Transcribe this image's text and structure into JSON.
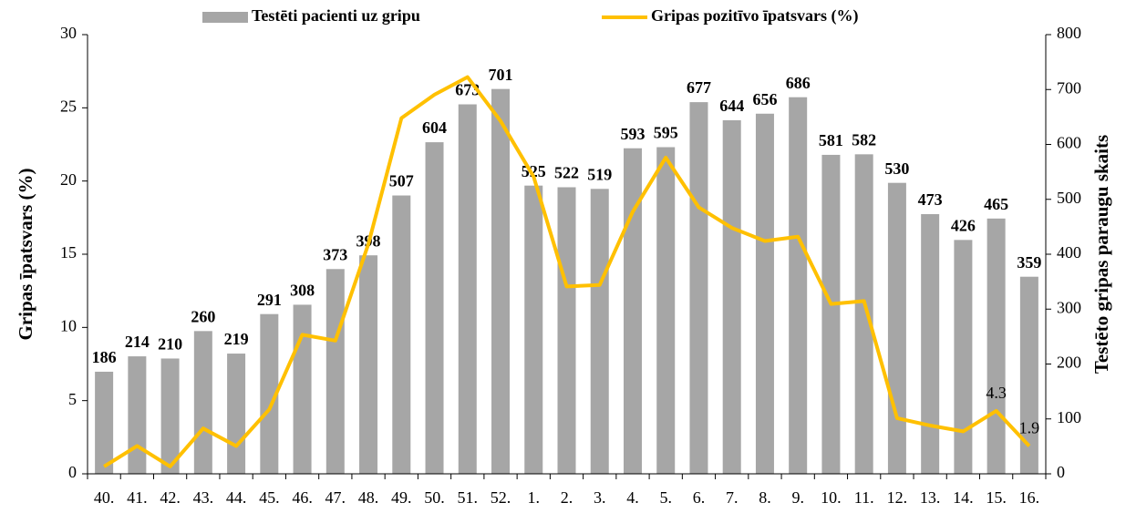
{
  "chart_data": {
    "type": "bar_line",
    "categories": [
      "40.",
      "41.",
      "42.",
      "43.",
      "44.",
      "45.",
      "46.",
      "47.",
      "48.",
      "49.",
      "50.",
      "51.",
      "52.",
      "1.",
      "2.",
      "3.",
      "4.",
      "5.",
      "6.",
      "7.",
      "8.",
      "9.",
      "10.",
      "11.",
      "12.",
      "13.",
      "14.",
      "15.",
      "16."
    ],
    "series": [
      {
        "name": "Testēti pacienti uz gripu",
        "type": "bar",
        "axis": "y2",
        "color": "#a6a6a6",
        "values": [
          186,
          214,
          210,
          260,
          219,
          291,
          308,
          373,
          398,
          507,
          604,
          673,
          701,
          525,
          522,
          519,
          593,
          595,
          677,
          644,
          656,
          686,
          581,
          582,
          530,
          473,
          426,
          465,
          359
        ]
      },
      {
        "name": "Gripas pozitīvo īpatsvars (%)",
        "type": "line",
        "axis": "y",
        "color": "#ffc000",
        "values": [
          0.5,
          1.9,
          0.5,
          3.1,
          1.9,
          4.4,
          9.5,
          9.1,
          15.7,
          24.3,
          25.9,
          27.1,
          24.1,
          20.3,
          12.8,
          12.9,
          17.9,
          21.6,
          18.2,
          16.8,
          15.9,
          16.2,
          11.6,
          11.8,
          3.8,
          3.3,
          2.9,
          4.3,
          1.9
        ],
        "value_labels": [
          null,
          null,
          null,
          null,
          null,
          null,
          null,
          null,
          null,
          null,
          null,
          null,
          null,
          null,
          null,
          null,
          null,
          null,
          null,
          null,
          null,
          null,
          null,
          null,
          null,
          null,
          null,
          "4.3",
          "1.9"
        ]
      }
    ],
    "y_label": "Gripas īpatsvars (%)",
    "y2_label": "Testēto gripas paraugu skaits",
    "ylim": [
      0,
      30
    ],
    "yticks": [
      0,
      5,
      10,
      15,
      20,
      25,
      30
    ],
    "y2lim": [
      0,
      800
    ],
    "y2ticks": [
      0,
      100,
      200,
      300,
      400,
      500,
      600,
      700,
      800
    ],
    "legend": "top"
  }
}
